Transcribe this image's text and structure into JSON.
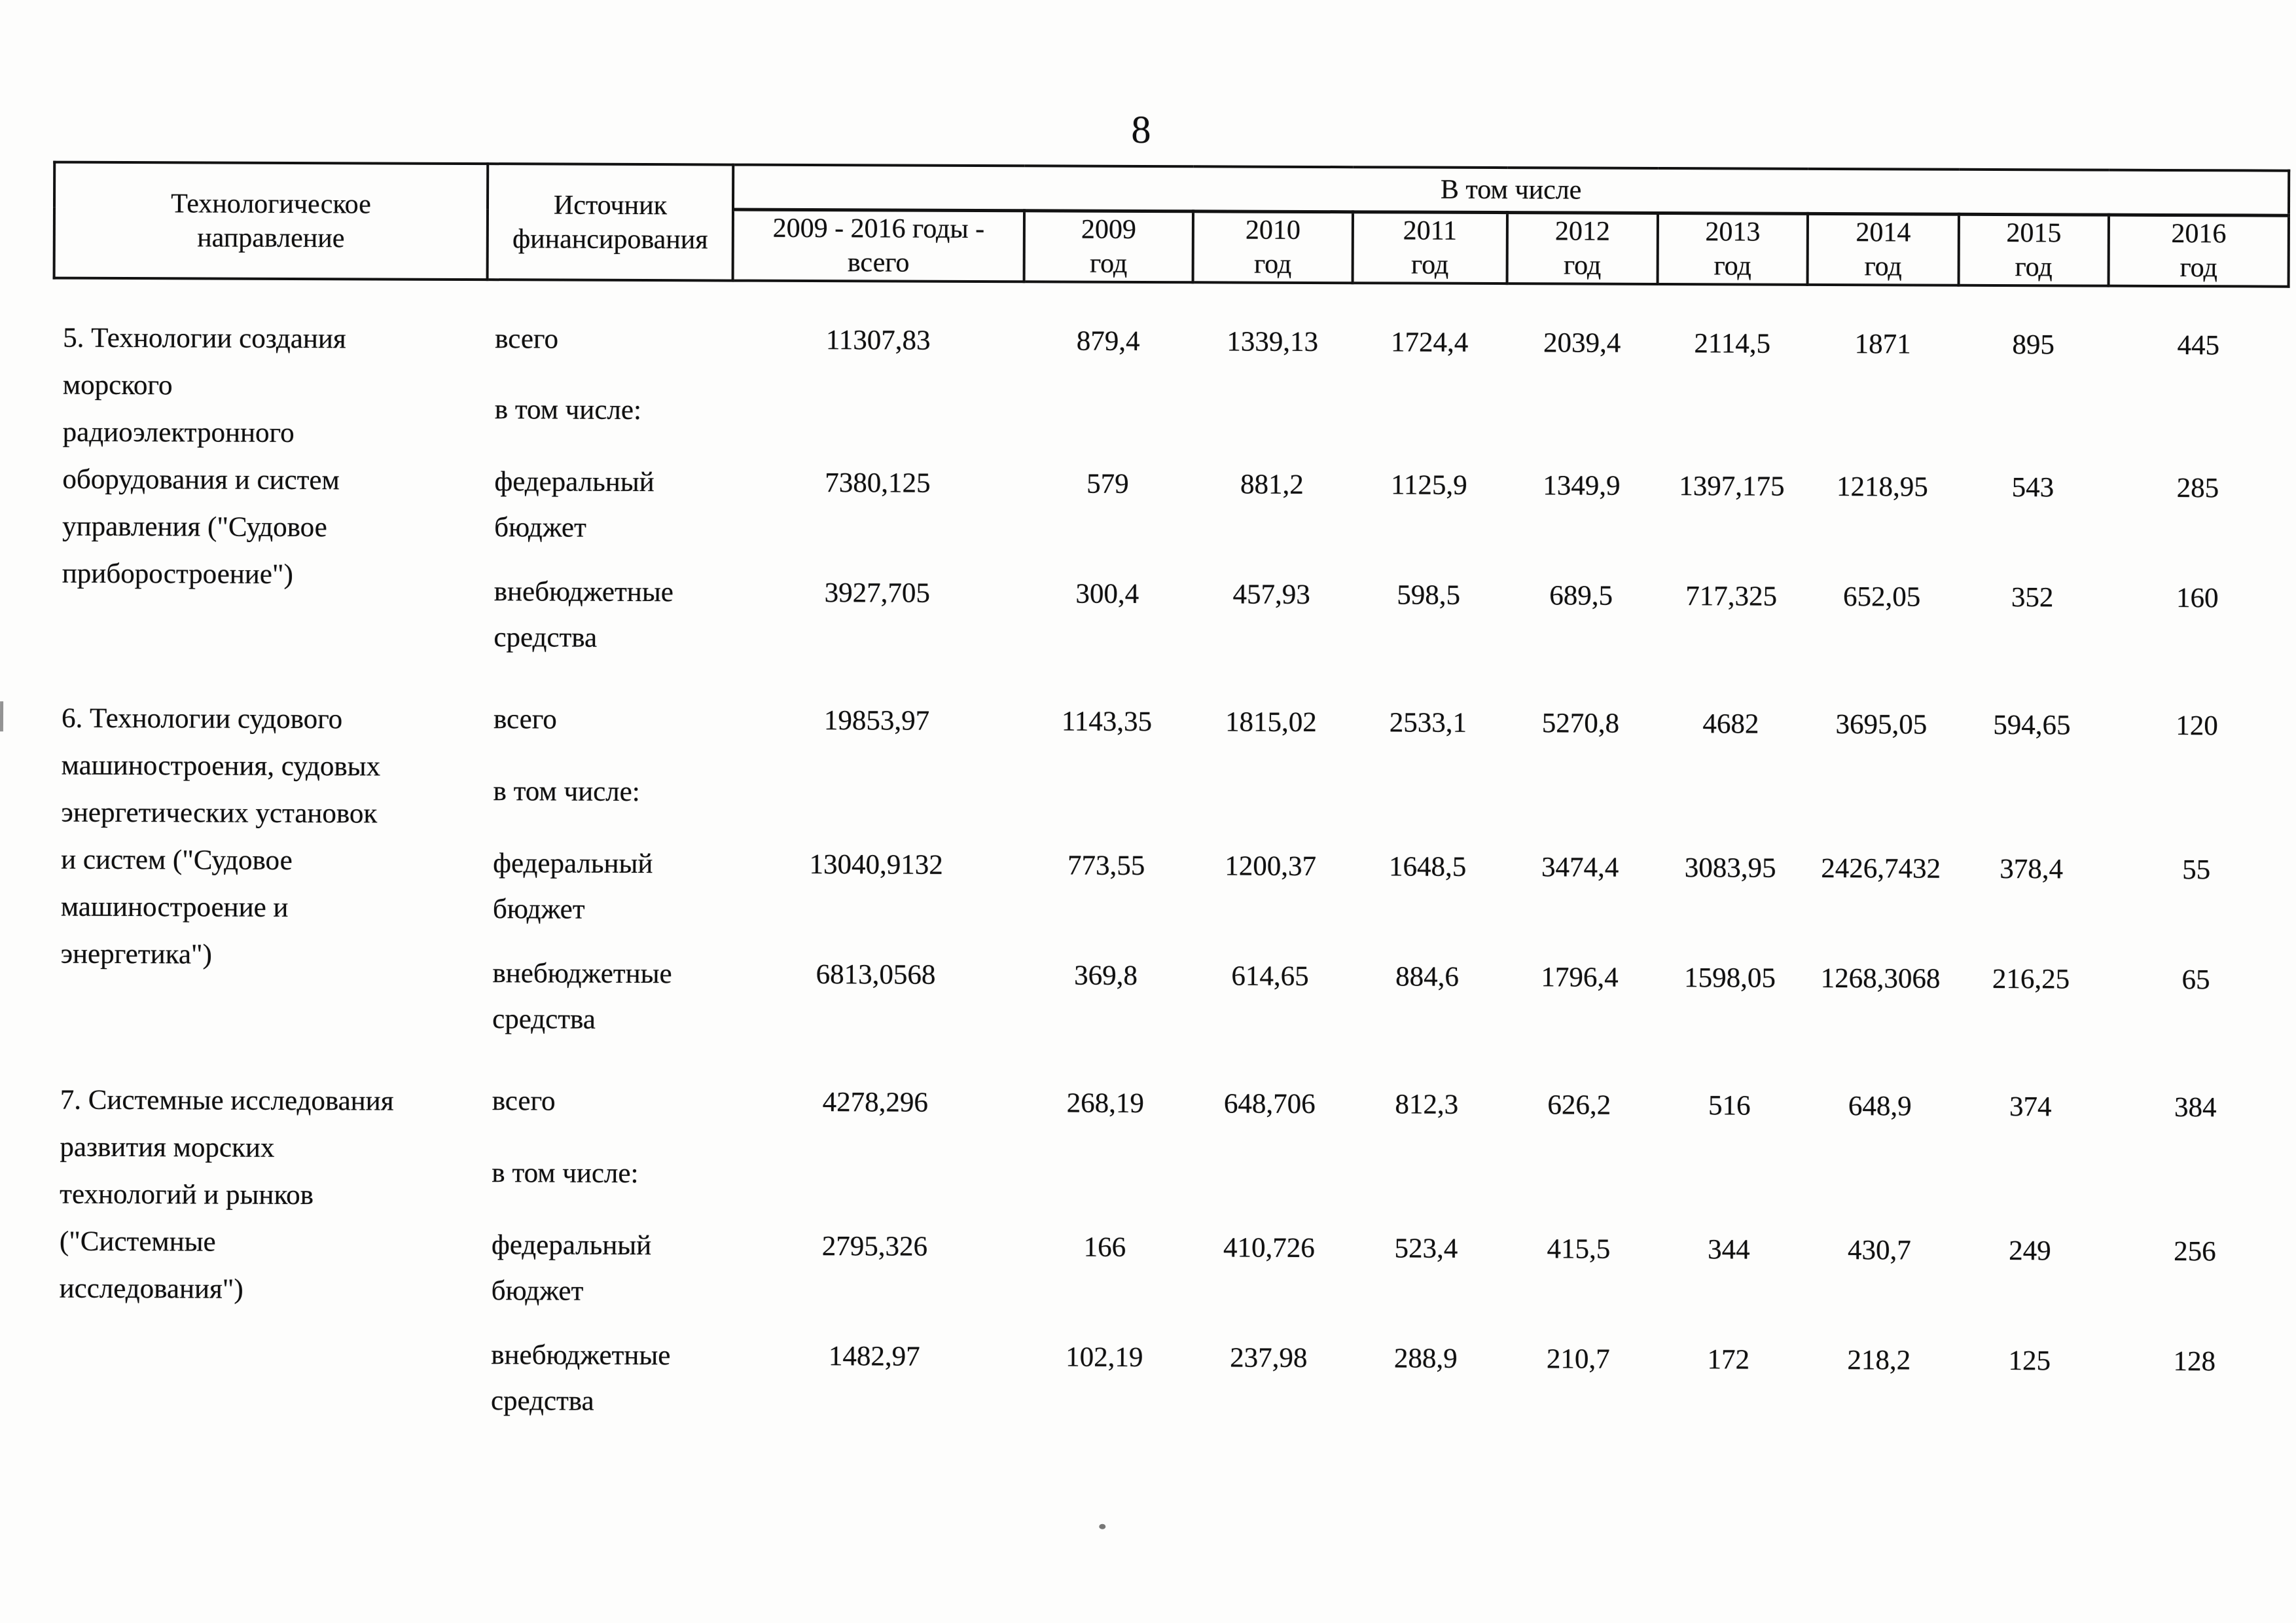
{
  "page_number": "8",
  "table": {
    "header": {
      "direction": {
        "line1": "Технологическое",
        "line2": "направление"
      },
      "source": {
        "line1": "Источник",
        "line2": "финансирования"
      },
      "group": "В том числе",
      "columns": [
        {
          "line1": "2009 - 2016 годы -",
          "line2": "всего"
        },
        {
          "line1": "2009",
          "line2": "год"
        },
        {
          "line1": "2010",
          "line2": "год"
        },
        {
          "line1": "2011",
          "line2": "год"
        },
        {
          "line1": "2012",
          "line2": "год"
        },
        {
          "line1": "2013",
          "line2": "год"
        },
        {
          "line1": "2014",
          "line2": "год"
        },
        {
          "line1": "2015",
          "line2": "год"
        },
        {
          "line1": "2016",
          "line2": "год"
        }
      ]
    },
    "blocks": [
      {
        "direction_lines": [
          "5. Технологии создания",
          "морского",
          "радиоэлектронного",
          "оборудования и систем",
          "управления (\"Судовое",
          "приборостроение\")"
        ],
        "rows": [
          {
            "source": "всего",
            "values": [
              "11307,83",
              "879,4",
              "1339,13",
              "1724,4",
              "2039,4",
              "2114,5",
              "1871",
              "895",
              "445"
            ]
          },
          {
            "source": "в том числе:",
            "values": []
          },
          {
            "source": "федеральный бюджет",
            "values": [
              "7380,125",
              "579",
              "881,2",
              "1125,9",
              "1349,9",
              "1397,175",
              "1218,95",
              "543",
              "285"
            ]
          },
          {
            "source": "внебюджетные средства",
            "values": [
              "3927,705",
              "300,4",
              "457,93",
              "598,5",
              "689,5",
              "717,325",
              "652,05",
              "352",
              "160"
            ]
          }
        ]
      },
      {
        "direction_lines": [
          "6. Технологии судового",
          "машиностроения, судовых",
          "энергетических установок",
          "и систем (\"Судовое",
          "машиностроение и",
          "энергетика\")"
        ],
        "rows": [
          {
            "source": "всего",
            "values": [
              "19853,97",
              "1143,35",
              "1815,02",
              "2533,1",
              "5270,8",
              "4682",
              "3695,05",
              "594,65",
              "120"
            ]
          },
          {
            "source": "в том числе:",
            "values": []
          },
          {
            "source": "федеральный бюджет",
            "values": [
              "13040,9132",
              "773,55",
              "1200,37",
              "1648,5",
              "3474,4",
              "3083,95",
              "2426,7432",
              "378,4",
              "55"
            ]
          },
          {
            "source": "внебюджетные средства",
            "values": [
              "6813,0568",
              "369,8",
              "614,65",
              "884,6",
              "1796,4",
              "1598,05",
              "1268,3068",
              "216,25",
              "65"
            ]
          }
        ]
      },
      {
        "direction_lines": [
          "7. Системные исследования",
          "развития морских",
          "технологий и рынков",
          "(\"Системные",
          "исследования\")"
        ],
        "rows": [
          {
            "source": "всего",
            "values": [
              "4278,296",
              "268,19",
              "648,706",
              "812,3",
              "626,2",
              "516",
              "648,9",
              "374",
              "384"
            ]
          },
          {
            "source": "в том числе:",
            "values": []
          },
          {
            "source": "федеральный бюджет",
            "values": [
              "2795,326",
              "166",
              "410,726",
              "523,4",
              "415,5",
              "344",
              "430,7",
              "249",
              "256"
            ]
          },
          {
            "source": "внебюджетные средства",
            "values": [
              "1482,97",
              "102,19",
              "237,98",
              "288,9",
              "210,7",
              "172",
              "218,2",
              "125",
              "128"
            ]
          }
        ]
      }
    ]
  }
}
